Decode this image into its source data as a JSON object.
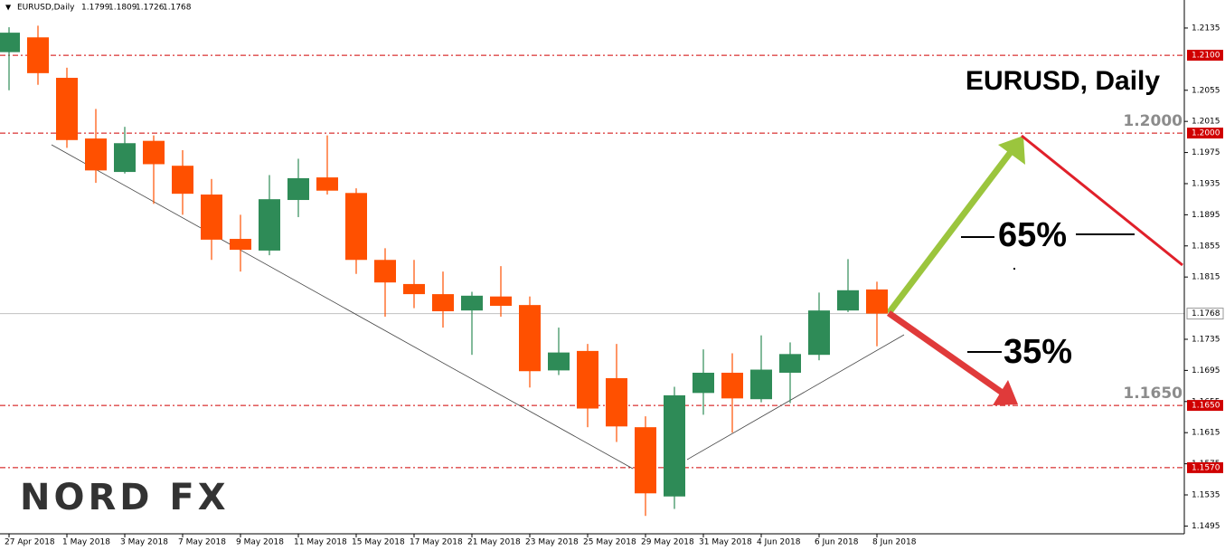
{
  "chart_data": {
    "type": "candlestick",
    "symbol": "EURUSD,Daily",
    "quote": [
      1.1799,
      1.1809,
      1.1726,
      1.1768
    ],
    "title": "EURUSD, Daily",
    "categories": [
      "27 Apr 2018",
      null,
      "1 May 2018",
      null,
      "3 May 2018",
      null,
      "7 May 2018",
      null,
      "9 May 2018",
      null,
      "11 May 2018",
      null,
      "15 May 2018",
      null,
      "17 May 2018",
      null,
      "21 May 2018",
      null,
      "23 May 2018",
      null,
      "25 May 2018",
      null,
      "29 May 2018",
      null,
      "31 May 2018",
      null,
      "4 Jun 2018",
      null,
      "6 Jun 2018",
      null,
      "8 Jun 2018"
    ],
    "open": [
      1.2104,
      1.2123,
      1.2071,
      1.1993,
      1.195,
      1.199,
      1.1958,
      1.1921,
      1.1864,
      1.1849,
      1.1914,
      1.1943,
      1.1923,
      1.1837,
      1.1806,
      1.1793,
      1.1772,
      1.179,
      1.1779,
      1.1695,
      1.172,
      1.1685,
      1.1622,
      1.1533,
      1.1666,
      1.1692,
      1.1658,
      1.1692,
      1.1715,
      1.1772,
      1.1799
    ],
    "high": [
      1.2136,
      1.2138,
      1.2084,
      1.2031,
      1.2008,
      1.1997,
      1.1978,
      1.1941,
      1.1895,
      1.1946,
      1.1967,
      1.1997,
      1.1929,
      1.1852,
      1.1837,
      1.1822,
      1.1796,
      1.1829,
      1.179,
      1.175,
      1.1729,
      1.1729,
      1.1636,
      1.1674,
      1.1722,
      1.1717,
      1.174,
      1.1731,
      1.1795,
      1.1838,
      1.1809
    ],
    "low": [
      1.2055,
      1.2062,
      1.1981,
      1.1936,
      1.1948,
      1.1909,
      1.1895,
      1.1837,
      1.1822,
      1.1843,
      1.1892,
      1.1921,
      1.1819,
      1.1764,
      1.1775,
      1.175,
      1.1715,
      1.1764,
      1.1673,
      1.1689,
      1.1622,
      1.1603,
      1.1508,
      1.1517,
      1.1638,
      1.1615,
      1.1654,
      1.1653,
      1.1708,
      1.177,
      1.1726
    ],
    "close": [
      1.2129,
      1.2077,
      1.1991,
      1.1952,
      1.1987,
      1.196,
      1.1922,
      1.1863,
      1.185,
      1.1915,
      1.1942,
      1.1926,
      1.1837,
      1.1808,
      1.1793,
      1.1771,
      1.1791,
      1.1778,
      1.1694,
      1.1718,
      1.1646,
      1.1623,
      1.1537,
      1.1663,
      1.1692,
      1.1659,
      1.1696,
      1.1716,
      1.1772,
      1.1798,
      1.1768
    ],
    "up_color": "#2e8b57",
    "down_color": "#ff5000",
    "ylim": [
      1.1485,
      1.2171
    ],
    "yticks": [
      1.2135,
      1.2055,
      1.2015,
      1.1975,
      1.1935,
      1.1895,
      1.1855,
      1.1815,
      1.1735,
      1.1695,
      1.1655,
      1.1615,
      1.1575,
      1.1535,
      1.1495
    ],
    "levels": [
      {
        "value": 1.21,
        "label": "1.2100"
      },
      {
        "value": 1.2,
        "label": "1.2000"
      },
      {
        "value": 1.165,
        "label": "1.1650"
      },
      {
        "value": 1.157,
        "label": "1.1570"
      }
    ],
    "level_color": "#d00000",
    "callouts": [
      {
        "value": 1.2,
        "label": "1.2000"
      },
      {
        "value": 1.165,
        "label": "1.1650"
      }
    ],
    "last_price": 1.1768,
    "annotations": [
      "65%",
      "35%"
    ]
  },
  "logo": "NORD FX"
}
